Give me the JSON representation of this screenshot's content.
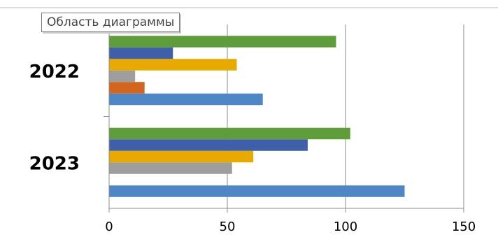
{
  "tooltip": "Область диаграммы",
  "chart_data": {
    "type": "bar",
    "orientation": "horizontal",
    "categories": [
      "2023",
      "2022"
    ],
    "x_ticks": [
      "0",
      "50",
      "100",
      "150"
    ],
    "xlim": [
      0,
      150
    ],
    "grid": true,
    "series": [
      {
        "color": "#4f86c6",
        "values": [
          125,
          65
        ]
      },
      {
        "color": "#d4651f",
        "values": [
          null,
          15
        ]
      },
      {
        "color": "#9e9e9e",
        "values": [
          52,
          11
        ]
      },
      {
        "color": "#e8aa00",
        "values": [
          61,
          54
        ]
      },
      {
        "color": "#3f5faa",
        "values": [
          84,
          27
        ]
      },
      {
        "color": "#5f9c3a",
        "values": [
          102,
          96
        ]
      }
    ]
  }
}
